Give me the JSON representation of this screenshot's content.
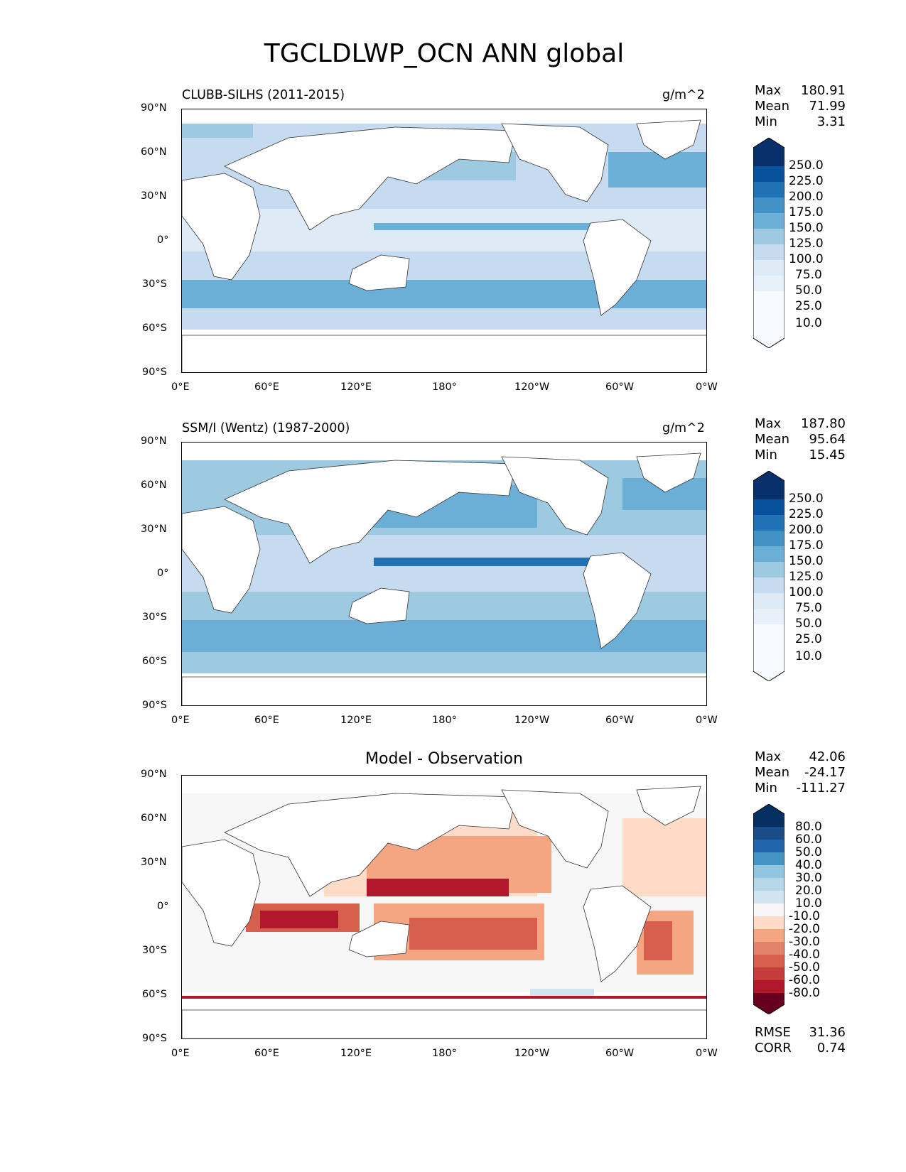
{
  "title": "TGCLDLWP_OCN ANN global",
  "lat_ticks": [
    "90°N",
    "60°N",
    "30°N",
    "0°",
    "30°S",
    "60°S",
    "90°S"
  ],
  "lon_ticks": [
    "0°E",
    "60°E",
    "120°E",
    "180°",
    "120°W",
    "60°W",
    "0°W"
  ],
  "panels": [
    {
      "label": "CLUBB-SILHS (2011-2015)",
      "units": "g/m^2",
      "stats": [
        [
          "Max",
          "180.91"
        ],
        [
          "Mean",
          "71.99"
        ],
        [
          "Min",
          "3.31"
        ]
      ],
      "levels": [
        "250.0",
        "225.0",
        "200.0",
        "175.0",
        "150.0",
        "125.0",
        "100.0",
        "75.0",
        "50.0",
        "25.0",
        "10.0"
      ],
      "colors": [
        "#f7fbff",
        "#deebf7",
        "#c6dbef",
        "#9ecae1",
        "#6baed6",
        "#4292c6",
        "#2171b5",
        "#08519c",
        "#08306b"
      ]
    },
    {
      "label": "SSM/I (Wentz) (1987-2000)",
      "units": "g/m^2",
      "stats": [
        [
          "Max",
          "187.80"
        ],
        [
          "Mean",
          "95.64"
        ],
        [
          "Min",
          "15.45"
        ]
      ],
      "levels": [
        "250.0",
        "225.0",
        "200.0",
        "175.0",
        "150.0",
        "125.0",
        "100.0",
        "75.0",
        "50.0",
        "25.0",
        "10.0"
      ],
      "colors": [
        "#f7fbff",
        "#deebf7",
        "#c6dbef",
        "#9ecae1",
        "#6baed6",
        "#4292c6",
        "#2171b5",
        "#08519c",
        "#08306b"
      ]
    },
    {
      "label": "Model - Observation",
      "units": "",
      "stats": [
        [
          "Max",
          "42.06"
        ],
        [
          "Mean",
          "-24.17"
        ],
        [
          "Min",
          "-111.27"
        ]
      ],
      "levels": [
        "80.0",
        "60.0",
        "50.0",
        "40.0",
        "30.0",
        "20.0",
        "10.0",
        "-10.0",
        "-20.0",
        "-30.0",
        "-40.0",
        "-50.0",
        "-60.0",
        "-80.0"
      ],
      "colors": [
        "#67001f",
        "#b2182b",
        "#d6604d",
        "#f4a582",
        "#fddbc7",
        "#f7f7f7",
        "#d1e5f0",
        "#92c5de",
        "#4393c3",
        "#2166ac",
        "#053061"
      ],
      "extra": [
        [
          "RMSE",
          "31.36"
        ],
        [
          "CORR",
          "0.74"
        ]
      ]
    }
  ]
}
